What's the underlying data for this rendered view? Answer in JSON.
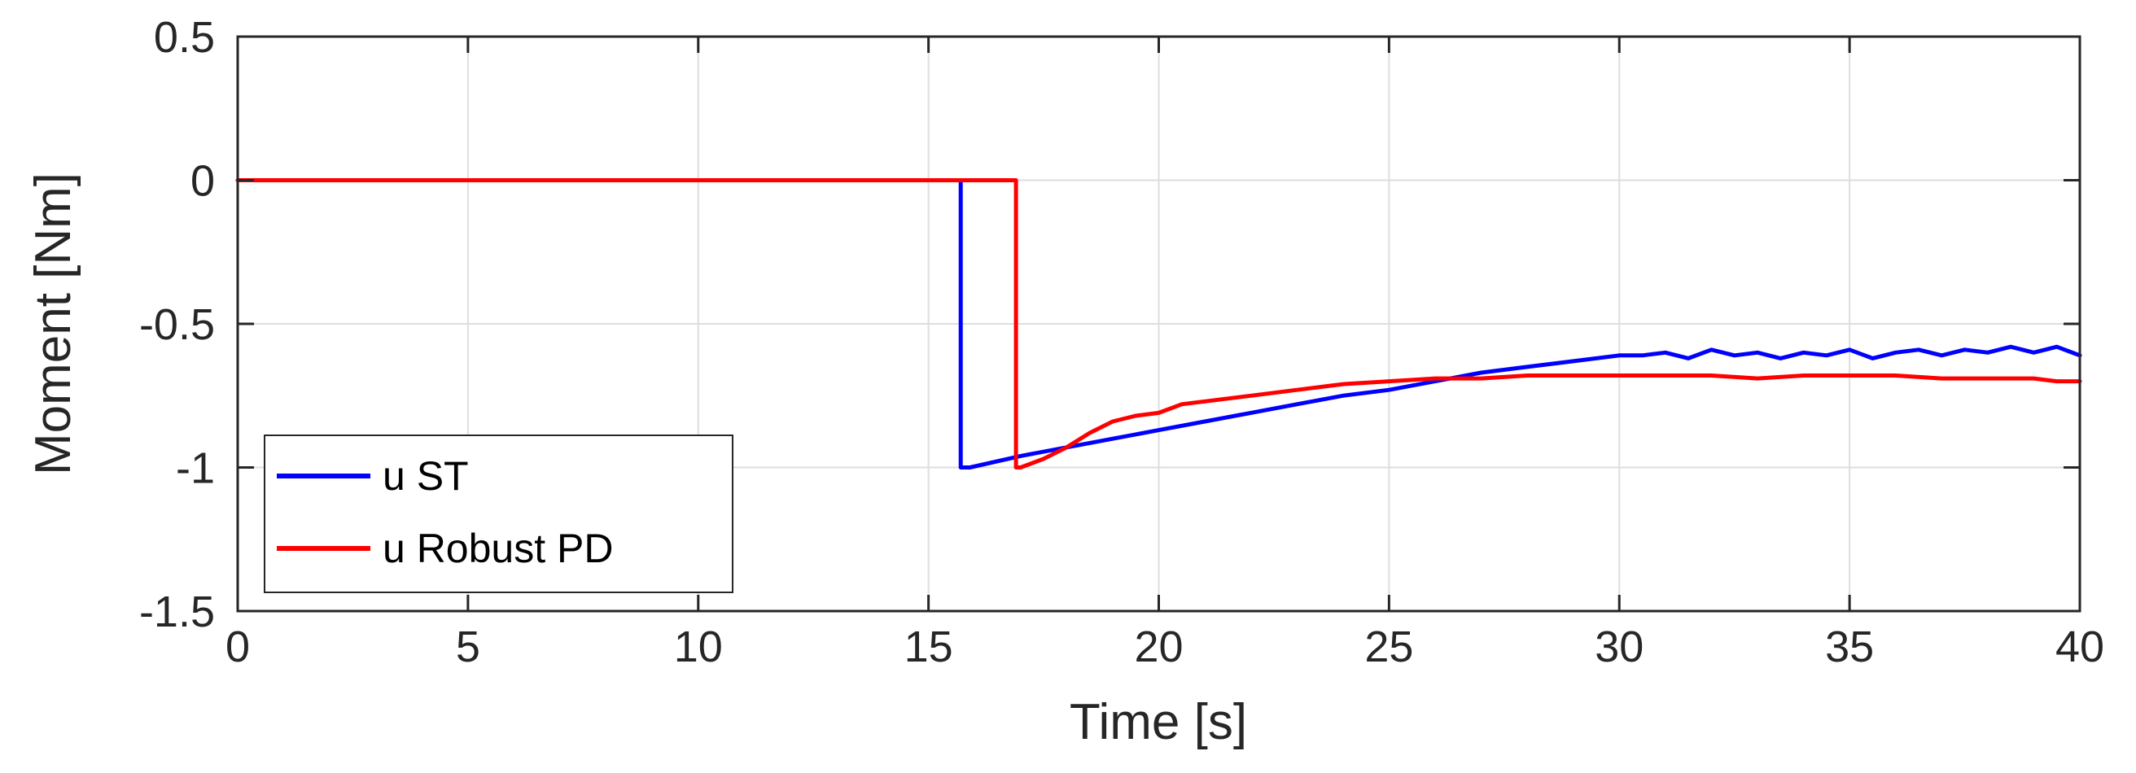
{
  "chart_data": {
    "type": "line",
    "title": "",
    "xlabel": "Time [s]",
    "ylabel": "Moment [Nm]",
    "xlim": [
      0,
      40
    ],
    "ylim": [
      -1.5,
      0.5
    ],
    "xticks": [
      0,
      5,
      10,
      15,
      20,
      25,
      30,
      35,
      40
    ],
    "xtick_labels": [
      "0",
      "5",
      "10",
      "15",
      "20",
      "25",
      "30",
      "35",
      "40"
    ],
    "yticks": [
      0.5,
      0,
      -0.5,
      -1,
      -1.5
    ],
    "ytick_labels": [
      "0.5",
      "0",
      "-0.5",
      "-1",
      "-1.5"
    ],
    "grid": true,
    "legend_position": "bottom-left",
    "series": [
      {
        "name": "u ST",
        "color": "#0000ff",
        "x": [
          0,
          15.7,
          15.7,
          15.9,
          17,
          18,
          19,
          20,
          21,
          22,
          23,
          24,
          25,
          26,
          27,
          28,
          29,
          30,
          30.5,
          31,
          31.5,
          32,
          32.5,
          33,
          33.5,
          34,
          34.5,
          35,
          35.5,
          36,
          36.5,
          37,
          37.5,
          38,
          38.5,
          39,
          39.5,
          40
        ],
        "y": [
          0,
          0,
          -1,
          -1,
          -0.96,
          -0.93,
          -0.9,
          -0.87,
          -0.84,
          -0.81,
          -0.78,
          -0.75,
          -0.73,
          -0.7,
          -0.67,
          -0.65,
          -0.63,
          -0.61,
          -0.61,
          -0.6,
          -0.62,
          -0.59,
          -0.61,
          -0.6,
          -0.62,
          -0.6,
          -0.61,
          -0.59,
          -0.62,
          -0.6,
          -0.59,
          -0.61,
          -0.59,
          -0.6,
          -0.58,
          -0.6,
          -0.58,
          -0.61
        ]
      },
      {
        "name": "u Robust PD",
        "color": "#ff0000",
        "x": [
          0,
          16.9,
          16.9,
          17,
          17.5,
          18,
          18.5,
          19,
          19.5,
          20,
          20.5,
          21,
          21.5,
          22,
          23,
          24,
          25,
          26,
          27,
          28,
          29,
          30,
          31,
          32,
          33,
          34,
          35,
          36,
          37,
          38,
          39,
          39.5,
          40
        ],
        "y": [
          0,
          0,
          -1,
          -1,
          -0.97,
          -0.93,
          -0.88,
          -0.84,
          -0.82,
          -0.81,
          -0.78,
          -0.77,
          -0.76,
          -0.75,
          -0.73,
          -0.71,
          -0.7,
          -0.69,
          -0.69,
          -0.68,
          -0.68,
          -0.68,
          -0.68,
          -0.68,
          -0.69,
          -0.68,
          -0.68,
          -0.68,
          -0.69,
          -0.69,
          -0.69,
          -0.7,
          -0.7
        ]
      }
    ]
  }
}
